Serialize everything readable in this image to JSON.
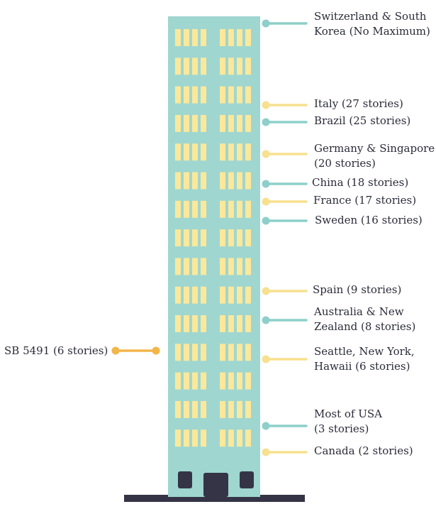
{
  "colors": {
    "building": "#9fd6d0",
    "window": "#fbe89b",
    "teal_marker": "#8ecfc9",
    "yellow_marker": "#f7e08f",
    "orange_marker": "#f2b64a",
    "ground": "#343446",
    "door": "#343446",
    "text": "#2b2b3a"
  },
  "building": {
    "floors": 15
  },
  "bill": {
    "label": "SB 5491 (6 stories)",
    "color_key": "orange_marker"
  },
  "markers": [
    {
      "label": "Switzerland & South Korea (No Maximum)",
      "lines": [
        "Switzerland & South",
        "Korea (No Maximum)"
      ],
      "color_key": "teal_marker"
    },
    {
      "label": "Italy (27 stories)",
      "lines": [
        "Italy (27 stories)"
      ],
      "color_key": "yellow_marker"
    },
    {
      "label": "Brazil (25 stories)",
      "lines": [
        "Brazil (25 stories)"
      ],
      "color_key": "teal_marker"
    },
    {
      "label": "Germany & Singapore (20 stories)",
      "lines": [
        "Germany & Singapore",
        "(20 stories)"
      ],
      "color_key": "yellow_marker"
    },
    {
      "label": "China (18 stories)",
      "lines": [
        "China (18 stories)"
      ],
      "color_key": "teal_marker"
    },
    {
      "label": "France (17 stories)",
      "lines": [
        "France (17 stories)"
      ],
      "color_key": "yellow_marker"
    },
    {
      "label": "Sweden (16 stories)",
      "lines": [
        "Sweden (16 stories)"
      ],
      "color_key": "teal_marker"
    },
    {
      "label": "Spain (9 stories)",
      "lines": [
        "Spain (9 stories)"
      ],
      "color_key": "yellow_marker"
    },
    {
      "label": "Australia & New Zealand (8 stories)",
      "lines": [
        "Australia & New",
        "Zealand (8 stories)"
      ],
      "color_key": "teal_marker"
    },
    {
      "label": "Seattle, New York, Hawaii (6 stories)",
      "lines": [
        "Seattle, New York,",
        "Hawaii (6 stories)"
      ],
      "color_key": "yellow_marker"
    },
    {
      "label": "Most of USA (3 stories)",
      "lines": [
        "Most of USA",
        "(3 stories)"
      ],
      "color_key": "teal_marker"
    },
    {
      "label": "Canada (2 stories)",
      "lines": [
        "Canada (2 stories)"
      ],
      "color_key": "yellow_marker"
    }
  ]
}
